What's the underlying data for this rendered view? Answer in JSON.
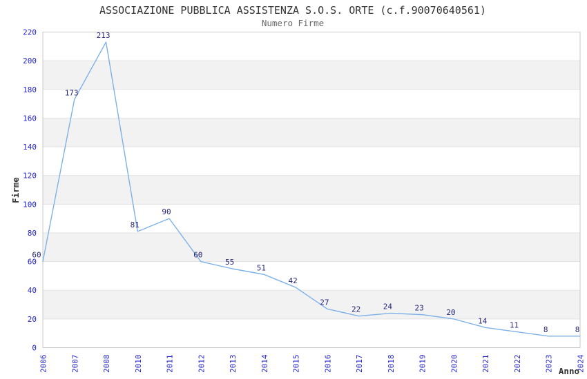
{
  "chart_data": {
    "type": "line",
    "title": "ASSOCIAZIONE PUBBLICA ASSISTENZA S.O.S. ORTE (c.f.90070640561)",
    "subtitle": "Numero Firme",
    "xlabel": "Anno",
    "ylabel": "Firme",
    "categories": [
      "2006",
      "2007",
      "2008",
      "2010",
      "2011",
      "2012",
      "2013",
      "2014",
      "2015",
      "2016",
      "2017",
      "2018",
      "2019",
      "2020",
      "2021",
      "2022",
      "2023",
      "2024"
    ],
    "values": [
      60,
      173,
      213,
      81,
      90,
      60,
      55,
      51,
      42,
      27,
      22,
      24,
      23,
      20,
      14,
      11,
      8,
      8
    ],
    "point_labels": [
      "60",
      "173",
      "213",
      "81",
      "90",
      "60",
      "55",
      "51",
      "42",
      "27",
      "22",
      "24",
      "23",
      "20",
      "14",
      "11",
      "8",
      "8"
    ],
    "ylim": [
      0,
      220
    ],
    "ytick_step": 20,
    "ytick_labels": [
      "0",
      "20",
      "40",
      "60",
      "80",
      "100",
      "120",
      "140",
      "160",
      "180",
      "200",
      "220"
    ],
    "legend": "none",
    "grid": "alternating horizontal bands with light gridlines every 20",
    "colors": {
      "line": "#7db1e8",
      "tick_label": "#2424d0",
      "point_label": "#26267a",
      "band": "#f2f2f2",
      "gridline": "#e3e3e3",
      "plot_border": "#c8c8c8",
      "title": "#333333",
      "subtitle": "#666666",
      "axis_title": "#333333",
      "background": "#ffffff"
    }
  }
}
